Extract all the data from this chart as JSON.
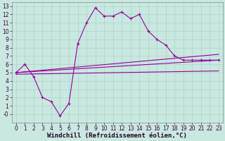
{
  "xlabel": "Windchill (Refroidissement éolien,°C)",
  "bg_color": "#c8e8e0",
  "line_color": "#990099",
  "curve1_x": [
    0,
    1,
    2,
    3,
    4,
    5,
    6,
    7,
    8,
    9,
    10,
    11,
    12,
    13,
    14,
    15,
    16,
    17,
    18,
    19,
    20,
    21,
    22,
    23
  ],
  "curve1_y": [
    5,
    6,
    4.5,
    2,
    1.5,
    -0.2,
    1.3,
    8.5,
    11,
    12.8,
    11.8,
    11.8,
    12.3,
    11.5,
    12,
    10,
    9,
    8.3,
    7,
    6.5,
    6.5,
    6.5,
    6.5,
    6.5
  ],
  "curve2_x": [
    0,
    23
  ],
  "curve2_y": [
    5,
    6.5
  ],
  "curve3_x": [
    0,
    23
  ],
  "curve3_y": [
    5,
    7.2
  ],
  "curve4_x": [
    0,
    23
  ],
  "curve4_y": [
    4.8,
    5.2
  ],
  "xlim": [
    -0.5,
    23.5
  ],
  "ylim": [
    -1,
    13.5
  ],
  "xticks": [
    0,
    1,
    2,
    3,
    4,
    5,
    6,
    7,
    8,
    9,
    10,
    11,
    12,
    13,
    14,
    15,
    16,
    17,
    18,
    19,
    20,
    21,
    22,
    23
  ],
  "yticks": [
    0,
    1,
    2,
    3,
    4,
    5,
    6,
    7,
    8,
    9,
    10,
    11,
    12,
    13
  ],
  "ytick_labels": [
    "-0",
    "1",
    "2",
    "3",
    "4",
    "5",
    "6",
    "7",
    "8",
    "9",
    "10",
    "11",
    "12",
    "13"
  ],
  "tick_fontsize": 5.5,
  "xlabel_fontsize": 6.5,
  "grid_color": "#aad4cc"
}
